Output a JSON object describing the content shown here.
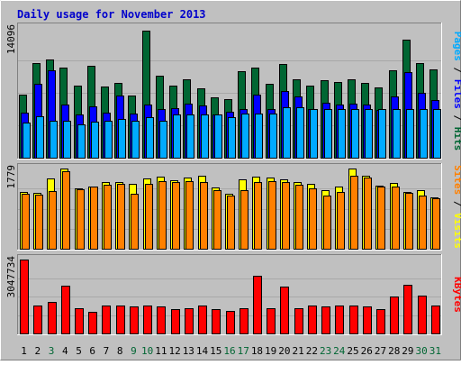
{
  "colors": {
    "background": "#c0c0c0",
    "plot_area": "#c0c0c0",
    "title": "#0000cc",
    "hits": "#006633",
    "files": "#0000ff",
    "pages": "#00aaff",
    "visits": "#ffff00",
    "sites": "#ff8000",
    "kbytes": "#ff0000",
    "weekend_day_label": "#006633",
    "weekday_label": "#000000"
  },
  "chart_data": {
    "type": "bar",
    "title": "Daily usage for November 2013",
    "categories": [
      "1",
      "2",
      "3",
      "4",
      "5",
      "6",
      "7",
      "8",
      "9",
      "10",
      "11",
      "12",
      "13",
      "14",
      "15",
      "16",
      "17",
      "18",
      "19",
      "20",
      "21",
      "22",
      "23",
      "24",
      "25",
      "26",
      "27",
      "28",
      "29",
      "30",
      "31"
    ],
    "weekend_days": [
      "3",
      "9",
      "10",
      "16",
      "17",
      "23",
      "24",
      "30",
      "31"
    ],
    "panels": [
      {
        "id": "usage",
        "ymax_label": "14096",
        "ymax": 14096,
        "ylabel_parts": [
          {
            "text": "Pages",
            "color": "#00aaff"
          },
          {
            "text": " / ",
            "color": "#000000"
          },
          {
            "text": "Files",
            "color": "#0000ff"
          },
          {
            "text": " / ",
            "color": "#000000"
          },
          {
            "text": "Hits",
            "color": "#006633"
          }
        ],
        "series": [
          {
            "name": "Hits",
            "color": "#006633",
            "values": [
              6900,
              10300,
              10700,
              9800,
              7800,
              10000,
              7700,
              8100,
              6800,
              13800,
              8900,
              7800,
              8500,
              7500,
              6600,
              6400,
              9400,
              9800,
              8000,
              10200,
              8500,
              7800,
              8400,
              8200,
              8500,
              8100,
              7600,
              9500,
              12800,
              10300,
              9600
            ]
          },
          {
            "name": "Files",
            "color": "#0000ff",
            "values": [
              4900,
              8000,
              9500,
              5800,
              4700,
              5600,
              4900,
              6800,
              4800,
              5800,
              5300,
              5400,
              5900,
              5700,
              4700,
              5000,
              5300,
              6900,
              5300,
              7200,
              6700,
              5300,
              6000,
              5800,
              5900,
              5800,
              5200,
              6700,
              9300,
              7000,
              6300
            ]
          },
          {
            "name": "Pages",
            "color": "#00aaff",
            "values": [
              3800,
              4500,
              4000,
              4000,
              3600,
              3900,
              4000,
              4200,
              4000,
              4400,
              4000,
              4700,
              4700,
              4700,
              4700,
              4400,
              4800,
              4800,
              4800,
              5500,
              5500,
              5300,
              5300,
              5300,
              5300,
              5300,
              5300,
              5300,
              5300,
              5300,
              5300
            ]
          }
        ]
      },
      {
        "id": "visits",
        "ymax_label": "1779",
        "ymax": 1779,
        "ylabel_parts": [
          {
            "text": "Sites",
            "color": "#ff8000"
          },
          {
            "text": " / ",
            "color": "#000000"
          },
          {
            "text": "Visits",
            "color": "#ffff00"
          }
        ],
        "series": [
          {
            "name": "Visits",
            "color": "#ffff00",
            "values": [
              1260,
              1240,
              1560,
              1770,
              1340,
              1380,
              1470,
              1480,
              1430,
              1550,
              1590,
              1520,
              1570,
              1620,
              1350,
              1210,
              1530,
              1590,
              1570,
              1530,
              1470,
              1440,
              1300,
              1380,
              1780,
              1620,
              1400,
              1450,
              1250,
              1300,
              1130
            ]
          },
          {
            "name": "Sites",
            "color": "#ff8000",
            "values": [
              1220,
              1200,
              1270,
              1720,
              1310,
              1370,
              1410,
              1430,
              1220,
              1440,
              1490,
              1480,
              1500,
              1480,
              1290,
              1180,
              1300,
              1470,
              1490,
              1480,
              1410,
              1330,
              1180,
              1260,
              1620,
              1580,
              1380,
              1370,
              1240,
              1180,
              1120
            ]
          }
        ]
      },
      {
        "id": "kbytes",
        "ymax_label": "3047734",
        "ymax": 3047734,
        "ylabel_parts": [
          {
            "text": "KBytes",
            "color": "#ff0000"
          }
        ],
        "series": [
          {
            "name": "KBytes",
            "color": "#ff0000",
            "values": [
              3047734,
              1150000,
              1290000,
              1960000,
              1050000,
              910000,
              1150000,
              1150000,
              1120000,
              1150000,
              1130000,
              990000,
              1040000,
              1150000,
              1020000,
              940000,
              1050000,
              2380000,
              1050000,
              1950000,
              1050000,
              1150000,
              1120000,
              1150000,
              1150000,
              1100000,
              1010000,
              1530000,
              2000000,
              1550000,
              1150000
            ]
          }
        ]
      }
    ]
  }
}
